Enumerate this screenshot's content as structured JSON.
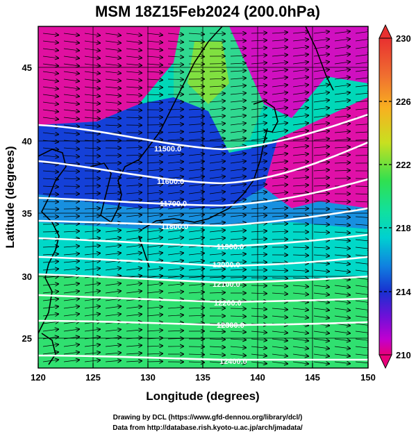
{
  "title": "MSM 18Z15Feb2024 (200.0hPa)",
  "axes": {
    "xlabel": "Longitude (degrees)",
    "ylabel": "Latitude  (degrees)",
    "xticks": [
      "120",
      "125",
      "130",
      "135",
      "140",
      "145",
      "150"
    ],
    "yticks": [
      "45",
      "40",
      "35",
      "30",
      "25"
    ]
  },
  "colorbar": {
    "ticks": [
      "230",
      "226",
      "222",
      "218",
      "214",
      "210"
    ],
    "colors": [
      "#e8007a",
      "#c000d8",
      "#7000d8",
      "#1830d8",
      "#1070e0",
      "#00b0d8",
      "#00e0b0",
      "#20e060",
      "#70e030",
      "#c0e020",
      "#f0d020",
      "#f8a020",
      "#f07030",
      "#e83030"
    ]
  },
  "contour_labels": [
    "11500.0",
    "11600.0",
    "11700.0",
    "11800.0",
    "11900.0",
    "12000.0",
    "12100.0",
    "12200.0",
    "12300.0",
    "12400.0"
  ],
  "credits": {
    "line1": "Drawing by DCL (https://www.gfd-dennou.org/library/dcl/)",
    "line2": "Data from http://database.rish.kyoto-u.ac.jp/arch/jmadata/"
  }
}
